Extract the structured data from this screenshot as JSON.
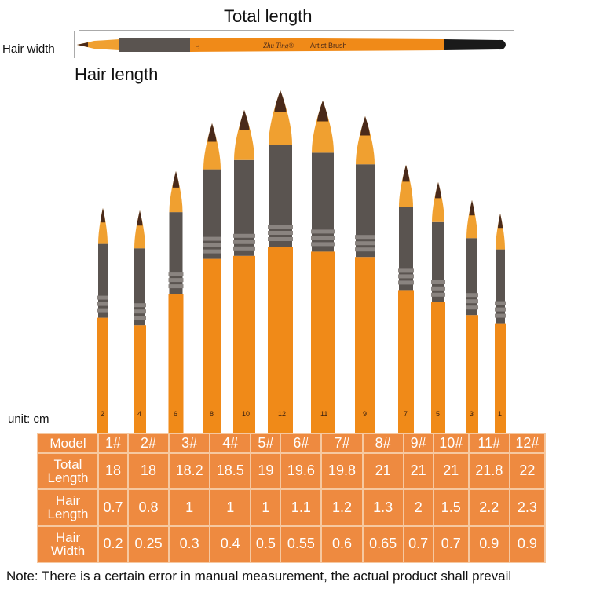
{
  "diagram": {
    "total_length_label": "Total length",
    "hair_width_label": "Hair width",
    "hair_length_label": "Hair length",
    "brush_imprint": {
      "number": "11",
      "brand": "Zhu Ting®",
      "text": "Artist Brush"
    }
  },
  "fan_brush_numbers": [
    "2",
    "4",
    "6",
    "8",
    "10",
    "12",
    "11",
    "9",
    "7",
    "5",
    "3",
    "1"
  ],
  "unit_label": "unit: cm",
  "table": {
    "row_headers": [
      "Model",
      "Total Length",
      "Hair Length",
      "Hair Width"
    ],
    "models": [
      "1#",
      "2#",
      "3#",
      "4#",
      "5#",
      "6#",
      "7#",
      "8#",
      "9#",
      "10#",
      "11#",
      "12#"
    ],
    "total_length": [
      "18",
      "18",
      "18.2",
      "18.5",
      "19",
      "19.6",
      "19.8",
      "21",
      "21",
      "21",
      "21.8",
      "22"
    ],
    "hair_length": [
      "0.7",
      "0.8",
      "1",
      "1",
      "1",
      "1.1",
      "1.2",
      "1.3",
      "2",
      "1.5",
      "2.2",
      "2.3"
    ],
    "hair_width": [
      "0.2",
      "0.25",
      "0.3",
      "0.4",
      "0.5",
      "0.55",
      "0.6",
      "0.65",
      "0.7",
      "0.7",
      "0.9",
      "0.9"
    ]
  },
  "note": "Note: There is a certain error in manual measurement, the actual product shall prevail",
  "colors": {
    "table_bg": "#ee8a40",
    "handle": "#f08a18",
    "ferrule": "#5a5450",
    "hair_tip": "#4a2a1a",
    "hair": "#f0a030"
  }
}
